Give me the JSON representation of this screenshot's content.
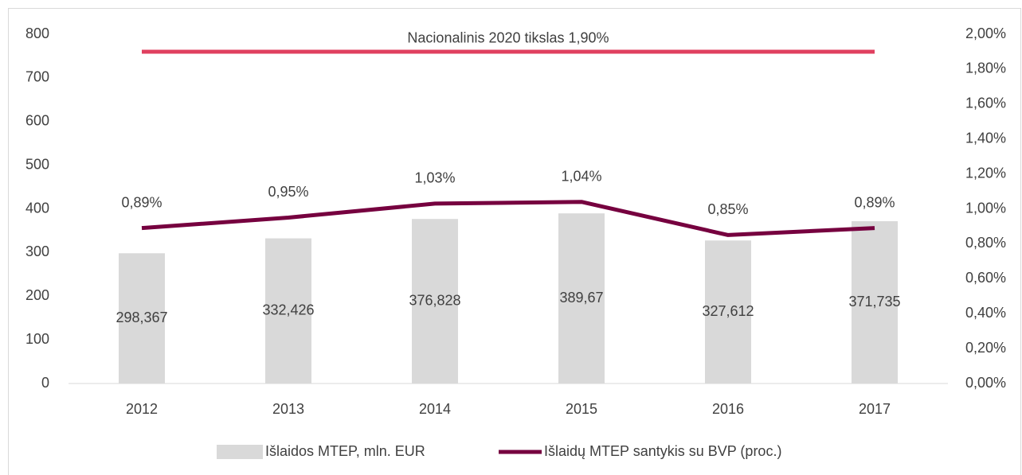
{
  "chart_data": {
    "type": "bar",
    "categories": [
      "2012",
      "2013",
      "2014",
      "2015",
      "2016",
      "2017"
    ],
    "series": [
      {
        "name": "Išlaidos MTEP, mln. EUR",
        "color": "#d9d9d9",
        "type": "bar",
        "values": [
          298.367,
          332.426,
          376.828,
          389.67,
          327.612,
          371.735
        ],
        "value_labels": [
          "298,367",
          "332,426",
          "376,828",
          "389,67",
          "327,612",
          "371,735"
        ]
      },
      {
        "name": "Išlaidų MTEP santykis su BVP (proc.)",
        "color": "#76003f",
        "type": "line",
        "axis": "y2",
        "values": [
          0.89,
          0.95,
          1.03,
          1.04,
          0.85,
          0.89
        ],
        "value_labels": [
          "0,89%",
          "0,95%",
          "1,03%",
          "1,04%",
          "0,85%",
          "0,89%"
        ]
      }
    ],
    "target": {
      "value": 1.9,
      "label": "Nacionalinis 2020 tikslas 1,90%",
      "color": "#e0405f",
      "axis": "y2"
    },
    "ylim": [
      0,
      800
    ],
    "yticks": [
      0,
      100,
      200,
      300,
      400,
      500,
      600,
      700,
      800
    ],
    "y2lim": [
      0,
      2
    ],
    "y2ticks": [
      {
        "value": 0,
        "label": "0,00%"
      },
      {
        "value": 0.2,
        "label": "0,20%"
      },
      {
        "value": 0.4,
        "label": "0,40%"
      },
      {
        "value": 0.6,
        "label": "0,60%"
      },
      {
        "value": 0.8,
        "label": "0,80%"
      },
      {
        "value": 1.0,
        "label": "1,00%"
      },
      {
        "value": 1.2,
        "label": "1,20%"
      },
      {
        "value": 1.4,
        "label": "1,40%"
      },
      {
        "value": 1.6,
        "label": "1,60%"
      },
      {
        "value": 1.8,
        "label": "1,80%"
      },
      {
        "value": 2.0,
        "label": "2,00%"
      }
    ],
    "grid": false,
    "legend": "bottom"
  }
}
